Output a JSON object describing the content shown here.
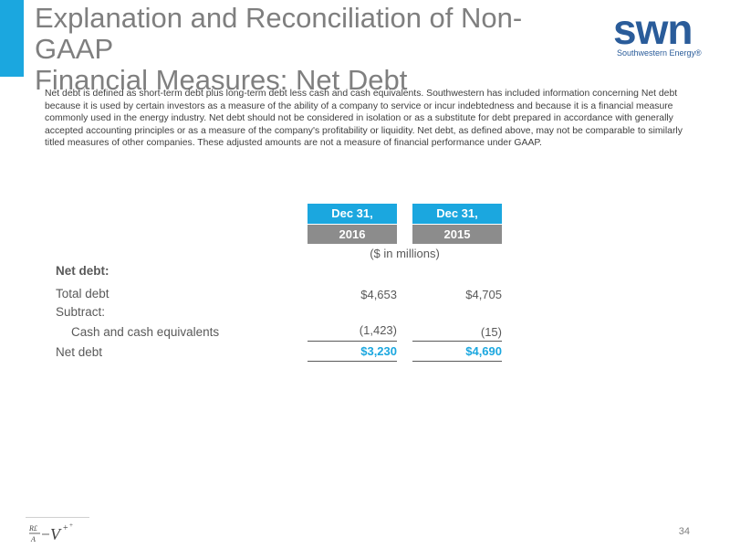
{
  "header": {
    "title_line1": "Explanation and Reconciliation of Non-GAAP",
    "title_line2": "Financial Measures: Net Debt",
    "accent_color": "#1ba7df"
  },
  "logo": {
    "mark": "swn",
    "tagline": "Southwestern Energy®",
    "color": "#2a5c9a"
  },
  "intro": "Net debt is defined as short-term debt plus long-term debt less cash and cash equivalents. Southwestern has included information concerning Net debt because it is used by certain investors as a measure of the ability of a company to service or incur indebtedness and because it is a financial measure commonly used in the energy industry. Net debt should not be considered in isolation or as a substitute for debt prepared in accordance with generally accepted accounting principles or as a measure of the company's profitability or liquidity. Net debt, as defined above, may not be comparable to similarly titled measures of other companies.  These adjusted amounts are not a measure of financial performance under GAAP.",
  "table": {
    "columns": [
      {
        "top": "Dec 31,",
        "bottom": "2016"
      },
      {
        "top": "Dec 31,",
        "bottom": "2015"
      }
    ],
    "units": "($ in millions)",
    "rows": [
      {
        "label": "Net debt:",
        "values": [
          "",
          ""
        ]
      },
      {
        "label": "Total debt",
        "values": [
          "$4,653",
          "$4,705"
        ]
      },
      {
        "label": "Subtract:",
        "values": [
          "",
          ""
        ]
      },
      {
        "label": "Cash and cash equivalents",
        "values": [
          "(1,423)",
          "(15)"
        ]
      },
      {
        "label": "Net debt",
        "values": [
          "$3,230",
          "$4,690"
        ]
      }
    ]
  },
  "footer": {
    "page_number": "34"
  }
}
